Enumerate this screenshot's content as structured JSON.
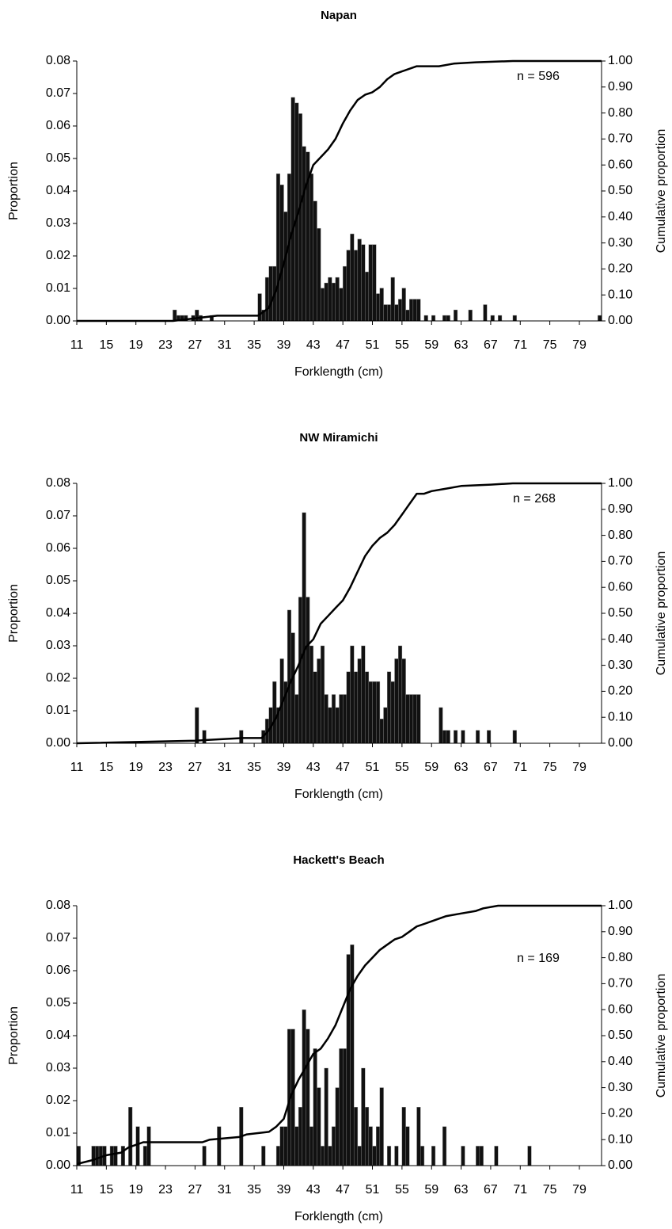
{
  "chart_data": [
    {
      "type": "bar",
      "title": "Napan",
      "xlabel": "Forklength (cm)",
      "ylabel": "Proportion",
      "y2label": "Cumulative proportion",
      "annotation": "n = 596",
      "xlim": [
        11,
        82
      ],
      "xticks": [
        11,
        15,
        19,
        23,
        27,
        31,
        35,
        39,
        43,
        47,
        51,
        55,
        59,
        63,
        67,
        71,
        75,
        79
      ],
      "ylim": [
        0,
        0.08
      ],
      "yticks": [
        {
          "value": 0,
          "label": "0.00"
        },
        {
          "value": 0.01,
          "label": "0.01"
        },
        {
          "value": 0.02,
          "label": "0.02"
        },
        {
          "value": 0.03,
          "label": "0.03"
        },
        {
          "value": 0.04,
          "label": "0.04"
        },
        {
          "value": 0.05,
          "label": "0.05"
        },
        {
          "value": 0.06,
          "label": "0.06"
        },
        {
          "value": 0.07,
          "label": "0.07"
        },
        {
          "value": 0.08,
          "label": "0.08"
        }
      ],
      "y2lim": [
        0,
        1
      ],
      "y2ticks": [
        {
          "value": 0,
          "label": "0.00"
        },
        {
          "value": 0.1,
          "label": "0.10"
        },
        {
          "value": 0.2,
          "label": "0.20"
        },
        {
          "value": 0.3,
          "label": "0.30"
        },
        {
          "value": 0.4,
          "label": "0.40"
        },
        {
          "value": 0.5,
          "label": "0.50"
        },
        {
          "value": 0.6,
          "label": "0.60"
        },
        {
          "value": 0.7,
          "label": "0.70"
        },
        {
          "value": 0.8,
          "label": "0.80"
        },
        {
          "value": 0.9,
          "label": "0.90"
        },
        {
          "value": 1,
          "label": "1.00"
        }
      ],
      "series": [
        {
          "color": "#111111",
          "x": [
            24,
            24.5,
            25,
            25.5,
            26.5,
            27,
            27.5,
            29,
            35.5,
            36,
            36.5,
            37,
            37.5,
            38,
            38.5,
            39,
            39.5,
            40,
            40.5,
            41,
            41.5,
            42,
            42.5,
            43,
            43.5,
            44,
            44.5,
            45,
            45.5,
            46,
            46.5,
            47,
            47.5,
            48,
            48.5,
            49,
            49.5,
            50,
            50.5,
            51,
            51.5,
            52,
            52.5,
            53,
            53.5,
            54,
            54.5,
            55,
            55.5,
            56,
            56.5,
            57,
            58,
            59,
            60.5,
            61,
            62,
            64,
            66,
            67,
            68,
            70,
            81.5
          ],
          "values": [
            0.0034,
            0.0017,
            0.0017,
            0.0017,
            0.0017,
            0.0034,
            0.0017,
            0.0017,
            0.0084,
            0.0034,
            0.0134,
            0.0168,
            0.0168,
            0.0453,
            0.0419,
            0.0336,
            0.0453,
            0.0688,
            0.0671,
            0.0638,
            0.0537,
            0.052,
            0.0453,
            0.0369,
            0.0285,
            0.0101,
            0.0117,
            0.0134,
            0.0117,
            0.0134,
            0.0101,
            0.0168,
            0.0218,
            0.0268,
            0.0218,
            0.0252,
            0.0235,
            0.0151,
            0.0235,
            0.0235,
            0.0084,
            0.0101,
            0.005,
            0.005,
            0.0134,
            0.005,
            0.0067,
            0.0101,
            0.0034,
            0.0067,
            0.0067,
            0.0067,
            0.0017,
            0.0017,
            0.0017,
            0.0017,
            0.0034,
            0.0034,
            0.005,
            0.0017,
            0.0017,
            0.0017,
            0.0017
          ]
        },
        {
          "color": "#000000",
          "axis": "y2",
          "x": [
            11,
            24,
            27,
            30,
            35.5,
            37,
            38,
            39,
            40,
            41,
            42,
            43,
            44,
            45,
            46,
            47,
            48,
            49,
            50,
            51,
            52,
            53,
            54,
            55,
            57,
            60,
            62,
            65,
            70,
            82
          ],
          "values": [
            0,
            0,
            0.01,
            0.02,
            0.02,
            0.05,
            0.12,
            0.22,
            0.33,
            0.42,
            0.52,
            0.6,
            0.63,
            0.66,
            0.7,
            0.76,
            0.81,
            0.85,
            0.87,
            0.88,
            0.9,
            0.93,
            0.95,
            0.96,
            0.98,
            0.98,
            0.99,
            0.995,
            1,
            1
          ]
        }
      ]
    },
    {
      "type": "bar",
      "title": "NW Miramichi",
      "xlabel": "Forklength (cm)",
      "ylabel": "Proportion",
      "y2label": "Cumulative proportion",
      "annotation": "n = 268",
      "xlim": [
        11,
        82
      ],
      "xticks": [
        11,
        15,
        19,
        23,
        27,
        31,
        35,
        39,
        43,
        47,
        51,
        55,
        59,
        63,
        67,
        71,
        75,
        79
      ],
      "ylim": [
        0,
        0.08
      ],
      "yticks": [
        {
          "value": 0,
          "label": "0.00"
        },
        {
          "value": 0.01,
          "label": "0.01"
        },
        {
          "value": 0.02,
          "label": "0.02"
        },
        {
          "value": 0.03,
          "label": "0.03"
        },
        {
          "value": 0.04,
          "label": "0.04"
        },
        {
          "value": 0.05,
          "label": "0.05"
        },
        {
          "value": 0.06,
          "label": "0.06"
        },
        {
          "value": 0.07,
          "label": "0.07"
        },
        {
          "value": 0.08,
          "label": "0.08"
        }
      ],
      "y2lim": [
        0,
        1
      ],
      "y2ticks": [
        {
          "value": 0,
          "label": "0.00"
        },
        {
          "value": 0.1,
          "label": "0.10"
        },
        {
          "value": 0.2,
          "label": "0.20"
        },
        {
          "value": 0.3,
          "label": "0.30"
        },
        {
          "value": 0.4,
          "label": "0.40"
        },
        {
          "value": 0.5,
          "label": "0.50"
        },
        {
          "value": 0.6,
          "label": "0.60"
        },
        {
          "value": 0.7,
          "label": "0.70"
        },
        {
          "value": 0.8,
          "label": "0.80"
        },
        {
          "value": 0.9,
          "label": "0.90"
        },
        {
          "value": 1,
          "label": "1.00"
        }
      ],
      "series": [
        {
          "color": "#111111",
          "x": [
            27,
            28,
            33,
            36,
            36.5,
            37,
            37.5,
            38,
            38.5,
            39,
            39.5,
            40,
            40.5,
            41,
            41.5,
            42,
            42.5,
            43,
            43.5,
            44,
            44.5,
            45,
            45.5,
            46,
            46.5,
            47,
            47.5,
            48,
            48.5,
            49,
            49.5,
            50,
            50.5,
            51,
            51.5,
            52,
            52.5,
            53,
            53.5,
            54,
            54.5,
            55,
            55.5,
            56,
            56.5,
            57,
            60,
            60.5,
            61,
            62,
            63,
            65,
            66.5,
            70
          ],
          "values": [
            0.011,
            0.004,
            0.004,
            0.004,
            0.0075,
            0.011,
            0.019,
            0.011,
            0.026,
            0.019,
            0.041,
            0.034,
            0.015,
            0.045,
            0.071,
            0.045,
            0.03,
            0.022,
            0.026,
            0.03,
            0.015,
            0.011,
            0.015,
            0.011,
            0.015,
            0.015,
            0.022,
            0.03,
            0.022,
            0.026,
            0.03,
            0.022,
            0.019,
            0.019,
            0.019,
            0.0075,
            0.011,
            0.022,
            0.019,
            0.026,
            0.03,
            0.026,
            0.015,
            0.015,
            0.015,
            0.015,
            0.011,
            0.004,
            0.004,
            0.004,
            0.004,
            0.004,
            0.004,
            0.004
          ]
        },
        {
          "color": "#000000",
          "axis": "y2",
          "x": [
            11,
            27,
            33.5,
            36,
            37,
            38,
            39,
            40,
            41,
            42,
            43,
            44,
            45,
            46,
            47,
            48,
            49,
            50,
            51,
            52,
            53,
            54,
            55,
            56,
            57,
            58,
            59,
            61,
            63,
            67,
            70,
            82
          ],
          "values": [
            0,
            0.01,
            0.02,
            0.02,
            0.05,
            0.1,
            0.17,
            0.24,
            0.3,
            0.37,
            0.4,
            0.46,
            0.49,
            0.52,
            0.55,
            0.6,
            0.66,
            0.72,
            0.76,
            0.79,
            0.81,
            0.84,
            0.88,
            0.92,
            0.96,
            0.96,
            0.97,
            0.98,
            0.99,
            0.995,
            1,
            1
          ]
        }
      ]
    },
    {
      "type": "bar",
      "title": "Hackett's Beach",
      "xlabel": "Forklength (cm)",
      "ylabel": "Proportion",
      "y2label": "Cumulative proportion",
      "annotation": "n = 169",
      "xlim": [
        11,
        82
      ],
      "xticks": [
        11,
        15,
        19,
        23,
        27,
        31,
        35,
        39,
        43,
        47,
        51,
        55,
        59,
        63,
        67,
        71,
        75,
        79
      ],
      "ylim": [
        0,
        0.08
      ],
      "yticks": [
        {
          "value": 0,
          "label": "0.00"
        },
        {
          "value": 0.01,
          "label": "0.01"
        },
        {
          "value": 0.02,
          "label": "0.02"
        },
        {
          "value": 0.03,
          "label": "0.03"
        },
        {
          "value": 0.04,
          "label": "0.04"
        },
        {
          "value": 0.05,
          "label": "0.05"
        },
        {
          "value": 0.06,
          "label": "0.06"
        },
        {
          "value": 0.07,
          "label": "0.07"
        },
        {
          "value": 0.08,
          "label": "0.08"
        }
      ],
      "y2lim": [
        0,
        1
      ],
      "y2ticks": [
        {
          "value": 0,
          "label": "0.00"
        },
        {
          "value": 0.1,
          "label": "0.10"
        },
        {
          "value": 0.2,
          "label": "0.20"
        },
        {
          "value": 0.3,
          "label": "0.30"
        },
        {
          "value": 0.4,
          "label": "0.40"
        },
        {
          "value": 0.5,
          "label": "0.50"
        },
        {
          "value": 0.6,
          "label": "0.60"
        },
        {
          "value": 0.7,
          "label": "0.70"
        },
        {
          "value": 0.8,
          "label": "0.80"
        },
        {
          "value": 0.9,
          "label": "0.90"
        },
        {
          "value": 1,
          "label": "1.00"
        }
      ],
      "series": [
        {
          "color": "#111111",
          "x": [
            11,
            13,
            13.5,
            14,
            14.5,
            15.5,
            16,
            17,
            18,
            19,
            20,
            20.5,
            28,
            30,
            33,
            36,
            38,
            38.5,
            39,
            39.5,
            40,
            40.5,
            41,
            41.5,
            42,
            42.5,
            43,
            43.5,
            44,
            44.5,
            45,
            45.5,
            46,
            46.5,
            47,
            47.5,
            48,
            48.5,
            49,
            49.5,
            50,
            50.5,
            51,
            51.5,
            52,
            53,
            54,
            55,
            55.5,
            57,
            57.5,
            59,
            60.5,
            63,
            65,
            65.5,
            67.5,
            72
          ],
          "values": [
            0.006,
            0.006,
            0.006,
            0.006,
            0.006,
            0.006,
            0.006,
            0.006,
            0.018,
            0.012,
            0.006,
            0.012,
            0.006,
            0.012,
            0.018,
            0.006,
            0.006,
            0.012,
            0.012,
            0.042,
            0.042,
            0.012,
            0.018,
            0.048,
            0.042,
            0.012,
            0.036,
            0.024,
            0.006,
            0.03,
            0.006,
            0.012,
            0.024,
            0.036,
            0.036,
            0.065,
            0.068,
            0.018,
            0.006,
            0.03,
            0.018,
            0.012,
            0.006,
            0.012,
            0.024,
            0.006,
            0.006,
            0.018,
            0.012,
            0.018,
            0.006,
            0.006,
            0.012,
            0.006,
            0.006,
            0.006,
            0.006,
            0.006
          ]
        },
        {
          "color": "#000000",
          "axis": "y2",
          "x": [
            11,
            13,
            15,
            17,
            18,
            19,
            20,
            22,
            28,
            29,
            33,
            34,
            37,
            38,
            39,
            40,
            41,
            42,
            43,
            44,
            45,
            46,
            47,
            48,
            49,
            50,
            51,
            52,
            53,
            54,
            55,
            56,
            57,
            58,
            59,
            61,
            63,
            65,
            66,
            68,
            82
          ],
          "values": [
            0.006,
            0.02,
            0.04,
            0.05,
            0.07,
            0.08,
            0.09,
            0.09,
            0.09,
            0.1,
            0.11,
            0.12,
            0.13,
            0.15,
            0.18,
            0.27,
            0.33,
            0.38,
            0.43,
            0.45,
            0.49,
            0.54,
            0.61,
            0.68,
            0.73,
            0.77,
            0.8,
            0.83,
            0.85,
            0.87,
            0.88,
            0.9,
            0.92,
            0.93,
            0.94,
            0.96,
            0.97,
            0.98,
            0.99,
            1,
            1
          ]
        }
      ]
    }
  ]
}
